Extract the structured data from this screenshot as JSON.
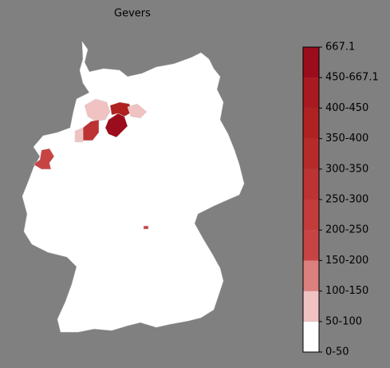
{
  "title": "Gevers",
  "colorbar": {
    "labels": [
      "0-50",
      "50-100",
      "100-150",
      "150-200",
      "200-250",
      "250-300",
      "300-350",
      "350-400",
      "400-450",
      "450-667.1",
      "667.1"
    ],
    "colors": [
      "#ffffff",
      "#f0c2c2",
      "#dc7f7f",
      "#c84444",
      "#c33b3b",
      "#bd3333",
      "#b72a2a",
      "#b02222",
      "#a81a1f",
      "#9b0c1c"
    ]
  }
}
